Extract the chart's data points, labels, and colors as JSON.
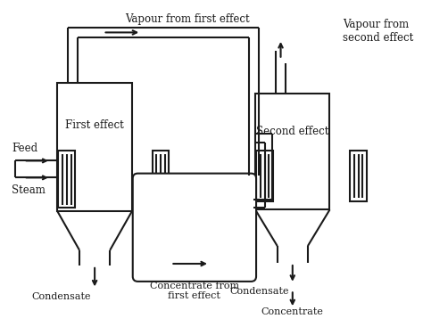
{
  "bg": "#ffffff",
  "lc": "#1a1a1a",
  "lw": 1.5,
  "fs": 8.5,
  "dpi": 100,
  "labels": {
    "vap1": "Vapour from first effect",
    "vap2": "Vapour from\nsecond effect",
    "eff1": "First effect",
    "eff2": "Second effect",
    "feed": "Feed",
    "steam": "Steam",
    "cond1": "Condensate",
    "cond2": "Condensate",
    "conc1": "Concentrate from\nfirst effect",
    "conc2": "Concentrate"
  }
}
